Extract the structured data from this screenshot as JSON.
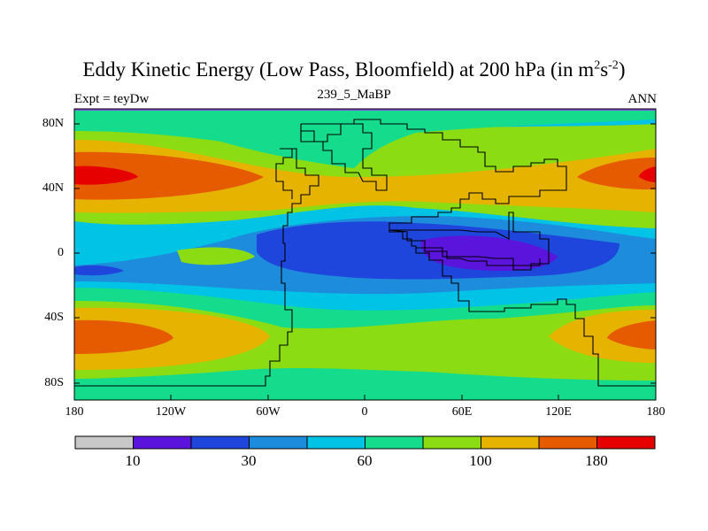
{
  "header": {
    "title_main": "Eddy Kinetic Energy (Low Pass, Bloomfield) at 200 hPa (in m",
    "title_sup1": "2",
    "title_mid": "s",
    "title_sup2": "-2",
    "title_end": ")",
    "left_label": "Expt = teyDw",
    "center_label": "239_5_MaBP",
    "right_label": "ANN"
  },
  "map": {
    "projection": "cylindrical-equidistant",
    "y_ticks": [
      "80N",
      "40N",
      "0",
      "40S",
      "80S"
    ],
    "x_ticks": [
      "180",
      "120W",
      "60W",
      "0",
      "60E",
      "120E",
      "180"
    ]
  },
  "colorbar": {
    "colors": [
      "#c8c8c8",
      "#5a14dc",
      "#1e46dc",
      "#1e8cdc",
      "#00c3e6",
      "#14dc8c",
      "#8cdc14",
      "#e6b400",
      "#e65a00",
      "#e60000"
    ],
    "labels": [
      "10",
      "30",
      "60",
      "100",
      "180"
    ]
  }
}
